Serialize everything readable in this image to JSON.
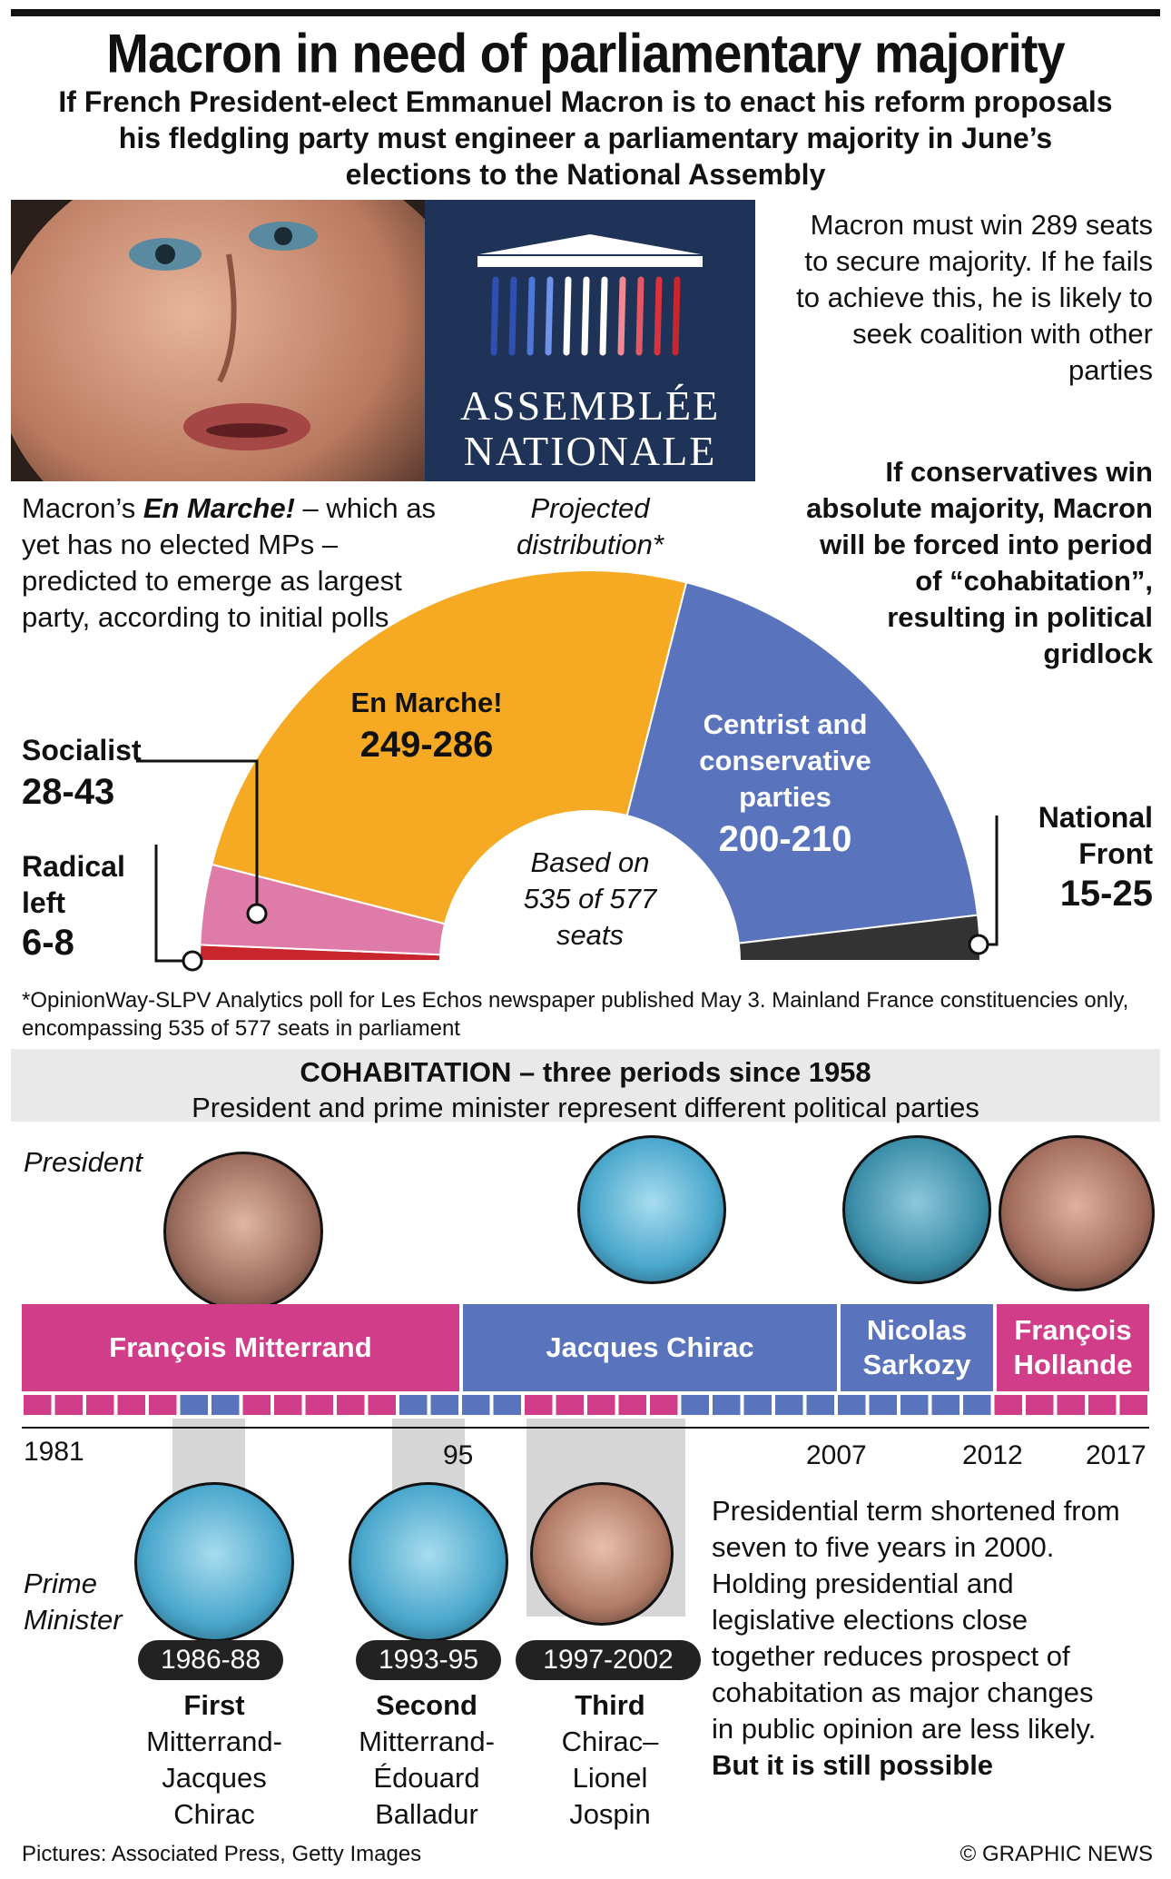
{
  "header": {
    "title": "Macron in need of parliamentary majority",
    "subtitle": "If French President-elect Emmanuel Macron is to enact his reform proposals his fledgling party must engineer a parliamentary majority in June’s elections to the National Assembly"
  },
  "logo": {
    "line1": "ASSEMBLÉE",
    "line2": "NATIONALE"
  },
  "right_notes": {
    "majority_note": "Macron must win 289 seats to secure majority. If he fails to achieve this, he is likely to seek coalition with other parties",
    "cohabitation_note": "If conservatives win absolute majority, Macron will be forced into period of “cohabitation”, resulting in political gridlock"
  },
  "left_note": {
    "prefix": "Macron’s ",
    "party": "En Marche!",
    "suffix": " – which as yet has no elected MPs – predicted to emerge as largest party, according to initial polls"
  },
  "projected_label": "Projected distribution*",
  "center_label": "Based on 535 of 577 seats",
  "chart_data": {
    "type": "pie",
    "subtype": "semicircle-parliament",
    "title": "Projected distribution*",
    "total_seats": 535,
    "segments": [
      {
        "name": "Radical left",
        "range": "6-8",
        "min": 6,
        "max": 8,
        "value": 7,
        "color": "#c8252c"
      },
      {
        "name": "Socialist",
        "range": "28-43",
        "min": 28,
        "max": 43,
        "value": 35.5,
        "color": "#de7ba8"
      },
      {
        "name": "En Marche!",
        "range": "249-286",
        "min": 249,
        "max": 286,
        "value": 267.5,
        "color": "#f6a923"
      },
      {
        "name": "Centrist and conservative parties",
        "range": "200-210",
        "min": 200,
        "max": 210,
        "value": 205,
        "color": "#5a73bd"
      },
      {
        "name": "National Front",
        "range": "15-25",
        "min": 15,
        "max": 25,
        "value": 20,
        "color": "#333333"
      }
    ]
  },
  "seg_labels": {
    "en_marche_name": "En Marche!",
    "en_marche_range": "249-286",
    "centrist_name": "Centrist and conservative parties",
    "centrist_range": "200-210",
    "socialist_name": "Socialist",
    "socialist_range": "28-43",
    "radical_name": "Radical left",
    "radical_range": "6-8",
    "nf_name": "National Front",
    "nf_range": "15-25"
  },
  "footnote": "*OpinionWay-SLPV Analytics poll for Les Echos newspaper published May 3. Mainland France constituencies only, encompassing 535 of 577 seats in parliament",
  "cohabitation": {
    "heading": "COHABITATION – three periods since 1958",
    "subheading": "President and prime minister represent different political parties",
    "president_label": "President",
    "pm_label": "Prime Minister",
    "presidents": [
      {
        "name": "François Mitterrand",
        "color": "#d13d88"
      },
      {
        "name": "Jacques Chirac",
        "color": "#5a73bd"
      },
      {
        "name": "Nicolas Sarkozy",
        "color": "#5a73bd"
      },
      {
        "name": "François Hollande",
        "color": "#d13d88"
      }
    ],
    "years": [
      "1981",
      "95",
      "2007",
      "2012",
      "2017"
    ],
    "periods": [
      {
        "years": "1986-88",
        "ordinal": "First",
        "names": "Mitterrand-Jacques Chirac"
      },
      {
        "years": "1993-95",
        "ordinal": "Second",
        "names": "Mitterrand-Édouard Balladur"
      },
      {
        "years": "1997-2002",
        "ordinal": "Third",
        "names": "Chirac–Lionel Jospin"
      }
    ],
    "note": "Presidential term shortened from seven to five years in 2000. Holding presidential and legislative elections close together reduces prospect of cohabitation as major changes in public opinion are less likely.",
    "note_bold": "But it is still possible"
  },
  "credits": {
    "pictures": "Pictures: Associated Press, Getty Images",
    "copyright": "© GRAPHIC NEWS"
  },
  "colors": {
    "pink": "#d13d88",
    "blue": "#5a73bd",
    "orange": "#f6a923",
    "navy": "#1d2f58",
    "grey_band": "#d6d6d6"
  }
}
